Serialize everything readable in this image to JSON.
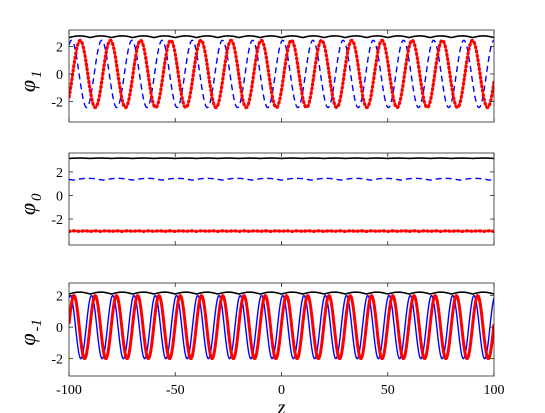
{
  "chart_data": [
    {
      "type": "line",
      "ylabel": "φ",
      "ylabel_sub": "1",
      "xlim": [
        -100,
        100
      ],
      "ylim": [
        -3.5,
        3.2
      ],
      "yticks": [
        -2,
        0,
        2
      ],
      "ytick_labels": [
        "-2",
        "0",
        "2"
      ],
      "series": [
        {
          "color": "#000000",
          "style": "solid",
          "width": 1.6,
          "kind": "ripple",
          "base": 2.65,
          "amp": 0.12,
          "period": 10
        },
        {
          "color": "#0000ff",
          "style": "dashed",
          "width": 1.4,
          "kind": "sine",
          "base": 0,
          "amp": 2.45,
          "period": 14.2,
          "phase": 1.3
        },
        {
          "color": "#ff0000",
          "style": "dotted",
          "width": 3.2,
          "kind": "sine",
          "base": 0,
          "amp": 2.45,
          "period": 14.2,
          "phase": -0.5
        }
      ]
    },
    {
      "type": "line",
      "ylabel": "φ",
      "ylabel_sub": "0",
      "xlim": [
        -100,
        100
      ],
      "ylim": [
        -4.2,
        3.6
      ],
      "yticks": [
        -2,
        0,
        2
      ],
      "ytick_labels": [
        "-2",
        "0",
        "2"
      ],
      "series": [
        {
          "color": "#000000",
          "style": "solid",
          "width": 1.6,
          "kind": "ripple",
          "base": 3.14,
          "amp": 0.03,
          "period": 10
        },
        {
          "color": "#0000ff",
          "style": "dashed",
          "width": 1.4,
          "kind": "ripple",
          "base": 1.3,
          "amp": 0.15,
          "period": 14
        },
        {
          "color": "#ff0000",
          "style": "dotted",
          "width": 3.2,
          "kind": "ripple",
          "base": -3.05,
          "amp": 0.05,
          "period": 5
        }
      ]
    },
    {
      "type": "line",
      "ylabel": "φ",
      "ylabel_sub": "-1",
      "xlim": [
        -100,
        100
      ],
      "ylim": [
        -3.1,
        2.8
      ],
      "yticks": [
        -2,
        0,
        2
      ],
      "ytick_labels": [
        "-2",
        "0",
        "2"
      ],
      "xticks": [
        -100,
        -50,
        0,
        50,
        100
      ],
      "xtick_labels": [
        "-100",
        "-50",
        "0",
        "50",
        "100"
      ],
      "xlabel": "z",
      "series": [
        {
          "color": "#000000",
          "style": "solid",
          "width": 1.6,
          "kind": "ripple",
          "base": 2.1,
          "amp": 0.12,
          "period": 10
        },
        {
          "color": "#0000ff",
          "style": "solid",
          "width": 1.4,
          "kind": "sine",
          "base": 0,
          "amp": 2.0,
          "period": 10,
          "phase": 1.2
        },
        {
          "color": "#ff0000",
          "style": "solid",
          "width": 3.0,
          "kind": "sine",
          "base": 0,
          "amp": 2.0,
          "period": 10,
          "phase": 0.1
        }
      ]
    }
  ]
}
